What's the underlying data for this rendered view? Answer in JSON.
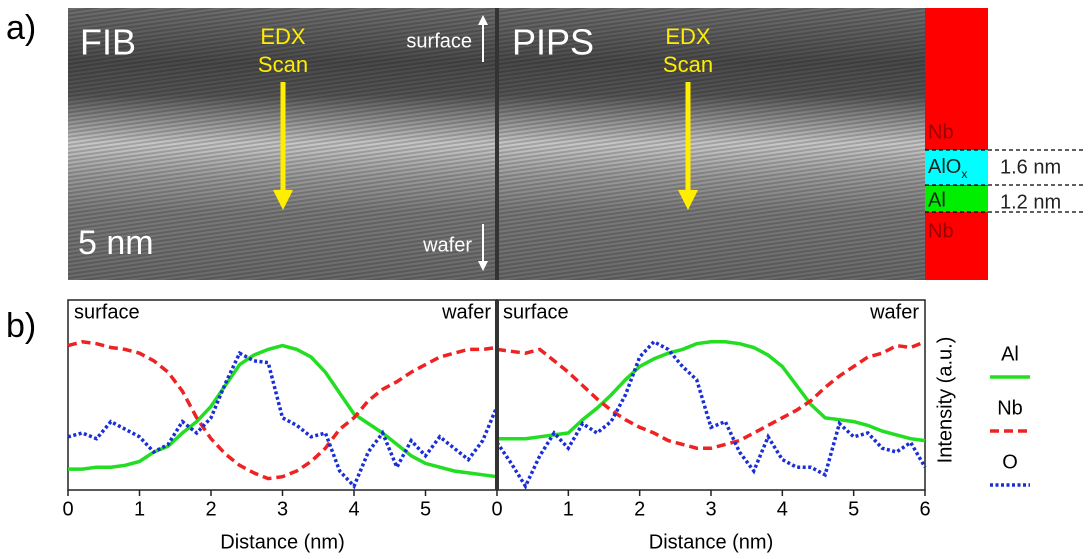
{
  "panel_a": {
    "label": "a)",
    "left": {
      "method": "FIB",
      "scan": [
        "EDX",
        "Scan"
      ],
      "surface": "surface",
      "wafer": "wafer",
      "scale": "5 nm"
    },
    "right": {
      "method": "PIPS",
      "scan": [
        "EDX",
        "Scan"
      ]
    },
    "layers": {
      "top": "Nb",
      "oxide": {
        "text": "AlO",
        "sub": "x"
      },
      "al": "Al",
      "bottom": "Nb",
      "oxide_thickness": "1.6 nm",
      "al_thickness": "1.2 nm"
    }
  },
  "panel_b": {
    "label": "b)",
    "ylabel": "Intensity (a.u.)"
  },
  "chart_data": [
    {
      "type": "line",
      "left_label": "surface",
      "right_label": "wafer",
      "xlabel": "Distance (nm)",
      "xlim": [
        0,
        6
      ],
      "xticks": [
        0,
        1,
        2,
        3,
        4,
        5
      ],
      "ylim": [
        0,
        1
      ],
      "x": [
        0,
        0.2,
        0.4,
        0.6,
        0.8,
        1,
        1.2,
        1.4,
        1.6,
        1.8,
        2,
        2.2,
        2.4,
        2.6,
        2.8,
        3,
        3.2,
        3.4,
        3.6,
        3.8,
        4,
        4.2,
        4.4,
        4.6,
        4.8,
        5,
        5.2,
        5.4,
        5.6,
        5.8,
        6
      ],
      "series": [
        {
          "color": "#22dd22",
          "style": "solid",
          "values": [
            0.11,
            0.11,
            0.12,
            0.12,
            0.13,
            0.15,
            0.2,
            0.23,
            0.3,
            0.36,
            0.44,
            0.55,
            0.66,
            0.71,
            0.74,
            0.76,
            0.74,
            0.7,
            0.62,
            0.51,
            0.4,
            0.35,
            0.3,
            0.24,
            0.18,
            0.14,
            0.12,
            0.1,
            0.09,
            0.08,
            0.07
          ]
        },
        {
          "color": "#ee2222",
          "style": "dashed",
          "values": [
            0.76,
            0.78,
            0.77,
            0.75,
            0.74,
            0.72,
            0.68,
            0.62,
            0.52,
            0.38,
            0.27,
            0.19,
            0.13,
            0.09,
            0.06,
            0.07,
            0.1,
            0.15,
            0.22,
            0.32,
            0.38,
            0.47,
            0.53,
            0.57,
            0.62,
            0.66,
            0.7,
            0.72,
            0.74,
            0.74,
            0.75
          ]
        },
        {
          "color": "#1a2ed8",
          "style": "dotted",
          "values": [
            0.28,
            0.3,
            0.27,
            0.36,
            0.32,
            0.28,
            0.2,
            0.24,
            0.36,
            0.3,
            0.38,
            0.56,
            0.72,
            0.68,
            0.67,
            0.38,
            0.34,
            0.28,
            0.3,
            0.1,
            0.02,
            0.2,
            0.3,
            0.12,
            0.26,
            0.18,
            0.28,
            0.22,
            0.16,
            0.26,
            0.44
          ]
        }
      ]
    },
    {
      "type": "line",
      "left_label": "surface",
      "right_label": "wafer",
      "xlabel": "Distance (nm)",
      "xlim": [
        0,
        6
      ],
      "xticks": [
        0,
        1,
        2,
        3,
        4,
        5,
        6
      ],
      "ylim": [
        0,
        1
      ],
      "x": [
        0,
        0.2,
        0.4,
        0.6,
        0.8,
        1,
        1.2,
        1.4,
        1.6,
        1.8,
        2,
        2.2,
        2.4,
        2.6,
        2.8,
        3,
        3.2,
        3.4,
        3.6,
        3.8,
        4,
        4.2,
        4.4,
        4.6,
        4.8,
        5,
        5.2,
        5.4,
        5.6,
        5.8,
        6
      ],
      "series": [
        {
          "name": "Al",
          "color": "#22dd22",
          "style": "solid",
          "values": [
            0.27,
            0.27,
            0.27,
            0.28,
            0.29,
            0.3,
            0.37,
            0.43,
            0.5,
            0.58,
            0.65,
            0.69,
            0.72,
            0.74,
            0.77,
            0.78,
            0.78,
            0.77,
            0.75,
            0.71,
            0.65,
            0.55,
            0.45,
            0.38,
            0.37,
            0.36,
            0.34,
            0.31,
            0.29,
            0.27,
            0.26
          ]
        },
        {
          "name": "Nb",
          "color": "#ee2222",
          "style": "dashed",
          "values": [
            0.74,
            0.73,
            0.72,
            0.74,
            0.68,
            0.62,
            0.55,
            0.48,
            0.42,
            0.37,
            0.33,
            0.3,
            0.26,
            0.24,
            0.22,
            0.22,
            0.24,
            0.26,
            0.3,
            0.34,
            0.38,
            0.42,
            0.47,
            0.54,
            0.6,
            0.65,
            0.7,
            0.72,
            0.76,
            0.75,
            0.78
          ]
        },
        {
          "name": "O",
          "color": "#1a2ed8",
          "style": "dotted",
          "values": [
            0.25,
            0.14,
            0.02,
            0.18,
            0.3,
            0.22,
            0.35,
            0.3,
            0.36,
            0.5,
            0.7,
            0.78,
            0.74,
            0.65,
            0.58,
            0.33,
            0.36,
            0.2,
            0.1,
            0.28,
            0.16,
            0.12,
            0.12,
            0.08,
            0.35,
            0.28,
            0.3,
            0.22,
            0.2,
            0.25,
            0.12
          ]
        }
      ]
    }
  ]
}
